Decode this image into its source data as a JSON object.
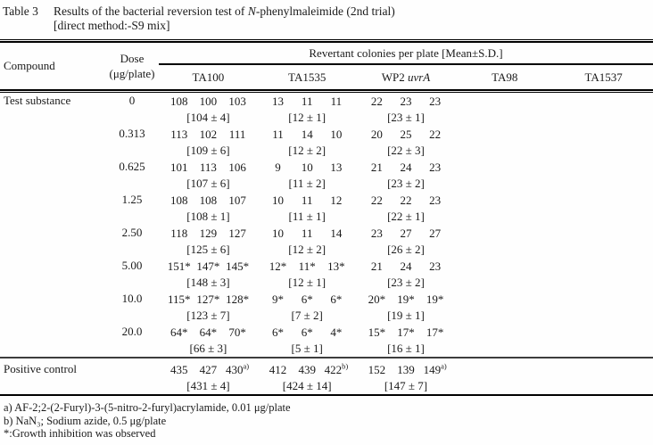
{
  "title": {
    "label": "Table 3",
    "line1_pre": "Results of the bacterial reversion test of ",
    "line1_italic": "N",
    "line1_post": "-phenylmaleimide (2nd trial)",
    "line2": "[direct method:-S9 mix]"
  },
  "table": {
    "header": {
      "compound": "Compound",
      "dose_line1": "Dose",
      "dose_line2": "(μg/plate)",
      "span_title": "Revertant colonies per plate [Mean±S.D.]",
      "strains": [
        {
          "text": "TA100"
        },
        {
          "text": "TA1535"
        },
        {
          "text": "WP2 ",
          "italic": "uvrA"
        },
        {
          "text": "TA98"
        },
        {
          "text": "TA1537"
        }
      ]
    },
    "body": [
      {
        "compound": "Test substance",
        "dose": "0",
        "cells": [
          {
            "vals": [
              "108",
              "100",
              "103"
            ],
            "mean": "[104 ± 4]"
          },
          {
            "vals": [
              "13",
              "11",
              "11"
            ],
            "mean": "[12 ± 1]"
          },
          {
            "vals": [
              "22",
              "23",
              "23"
            ],
            "mean": "[23 ± 1]"
          },
          {
            "vals": [],
            "mean": ""
          },
          {
            "vals": [],
            "mean": ""
          }
        ]
      },
      {
        "compound": "",
        "dose": "0.313",
        "cells": [
          {
            "vals": [
              "113",
              "102",
              "111"
            ],
            "mean": "[109 ± 6]"
          },
          {
            "vals": [
              "11",
              "14",
              "10"
            ],
            "mean": "[12 ± 2]"
          },
          {
            "vals": [
              "20",
              "25",
              "22"
            ],
            "mean": "[22 ± 3]"
          },
          {
            "vals": [],
            "mean": ""
          },
          {
            "vals": [],
            "mean": ""
          }
        ]
      },
      {
        "compound": "",
        "dose": "0.625",
        "cells": [
          {
            "vals": [
              "101",
              "113",
              "106"
            ],
            "mean": "[107 ± 6]"
          },
          {
            "vals": [
              "9",
              "10",
              "13"
            ],
            "mean": "[11 ± 2]"
          },
          {
            "vals": [
              "21",
              "24",
              "23"
            ],
            "mean": "[23 ± 2]"
          },
          {
            "vals": [],
            "mean": ""
          },
          {
            "vals": [],
            "mean": ""
          }
        ]
      },
      {
        "compound": "",
        "dose": "1.25",
        "cells": [
          {
            "vals": [
              "108",
              "108",
              "107"
            ],
            "mean": "[108 ± 1]"
          },
          {
            "vals": [
              "10",
              "11",
              "12"
            ],
            "mean": "[11 ± 1]"
          },
          {
            "vals": [
              "22",
              "22",
              "23"
            ],
            "mean": "[22 ± 1]"
          },
          {
            "vals": [],
            "mean": ""
          },
          {
            "vals": [],
            "mean": ""
          }
        ]
      },
      {
        "compound": "",
        "dose": "2.50",
        "cells": [
          {
            "vals": [
              "118",
              "129",
              "127"
            ],
            "mean": "[125 ± 6]"
          },
          {
            "vals": [
              "10",
              "11",
              "14"
            ],
            "mean": "[12 ± 2]"
          },
          {
            "vals": [
              "23",
              "27",
              "27"
            ],
            "mean": "[26 ± 2]"
          },
          {
            "vals": [],
            "mean": ""
          },
          {
            "vals": [],
            "mean": ""
          }
        ]
      },
      {
        "compound": "",
        "dose": "5.00",
        "cells": [
          {
            "vals": [
              "151*",
              "147*",
              "145*"
            ],
            "mean": "[148 ± 3]"
          },
          {
            "vals": [
              "12*",
              "11*",
              "13*"
            ],
            "mean": "[12 ± 1]"
          },
          {
            "vals": [
              "21",
              "24",
              "23"
            ],
            "mean": "[23 ± 2]"
          },
          {
            "vals": [],
            "mean": ""
          },
          {
            "vals": [],
            "mean": ""
          }
        ]
      },
      {
        "compound": "",
        "dose": "10.0",
        "cells": [
          {
            "vals": [
              "115*",
              "127*",
              "128*"
            ],
            "mean": "[123 ± 7]"
          },
          {
            "vals": [
              "9*",
              "6*",
              "6*"
            ],
            "mean": "[7 ± 2]"
          },
          {
            "vals": [
              "20*",
              "19*",
              "19*"
            ],
            "mean": "[19 ± 1]"
          },
          {
            "vals": [],
            "mean": ""
          },
          {
            "vals": [],
            "mean": ""
          }
        ]
      },
      {
        "compound": "",
        "dose": "20.0",
        "cells": [
          {
            "vals": [
              "64*",
              "64*",
              "70*"
            ],
            "mean": "[66 ± 3]"
          },
          {
            "vals": [
              "6*",
              "6*",
              "4*"
            ],
            "mean": "[5 ± 1]"
          },
          {
            "vals": [
              "15*",
              "17*",
              "17*"
            ],
            "mean": "[16 ± 1]"
          },
          {
            "vals": [],
            "mean": ""
          },
          {
            "vals": [],
            "mean": ""
          }
        ]
      }
    ],
    "positive_control": {
      "compound": "Positive control",
      "dose": "",
      "cells": [
        {
          "vals": [
            "435",
            "427",
            "430^a)"
          ],
          "mean": "[431 ± 4]"
        },
        {
          "vals": [
            "412",
            "439",
            "422^b)"
          ],
          "mean": "[424 ± 14]"
        },
        {
          "vals": [
            "152",
            "139",
            "149^a)"
          ],
          "mean": "[147 ± 7]"
        },
        {
          "vals": [],
          "mean": ""
        },
        {
          "vals": [],
          "mean": ""
        }
      ]
    }
  },
  "footnotes": [
    "a) AF-2;2-(2-Furyl)-3-(5-nitro-2-furyl)acrylamide, 0.01 μg/plate",
    "b) NaN₃; Sodium azide, 0.5 μg/plate",
    "*:Growth inhibition was observed"
  ]
}
